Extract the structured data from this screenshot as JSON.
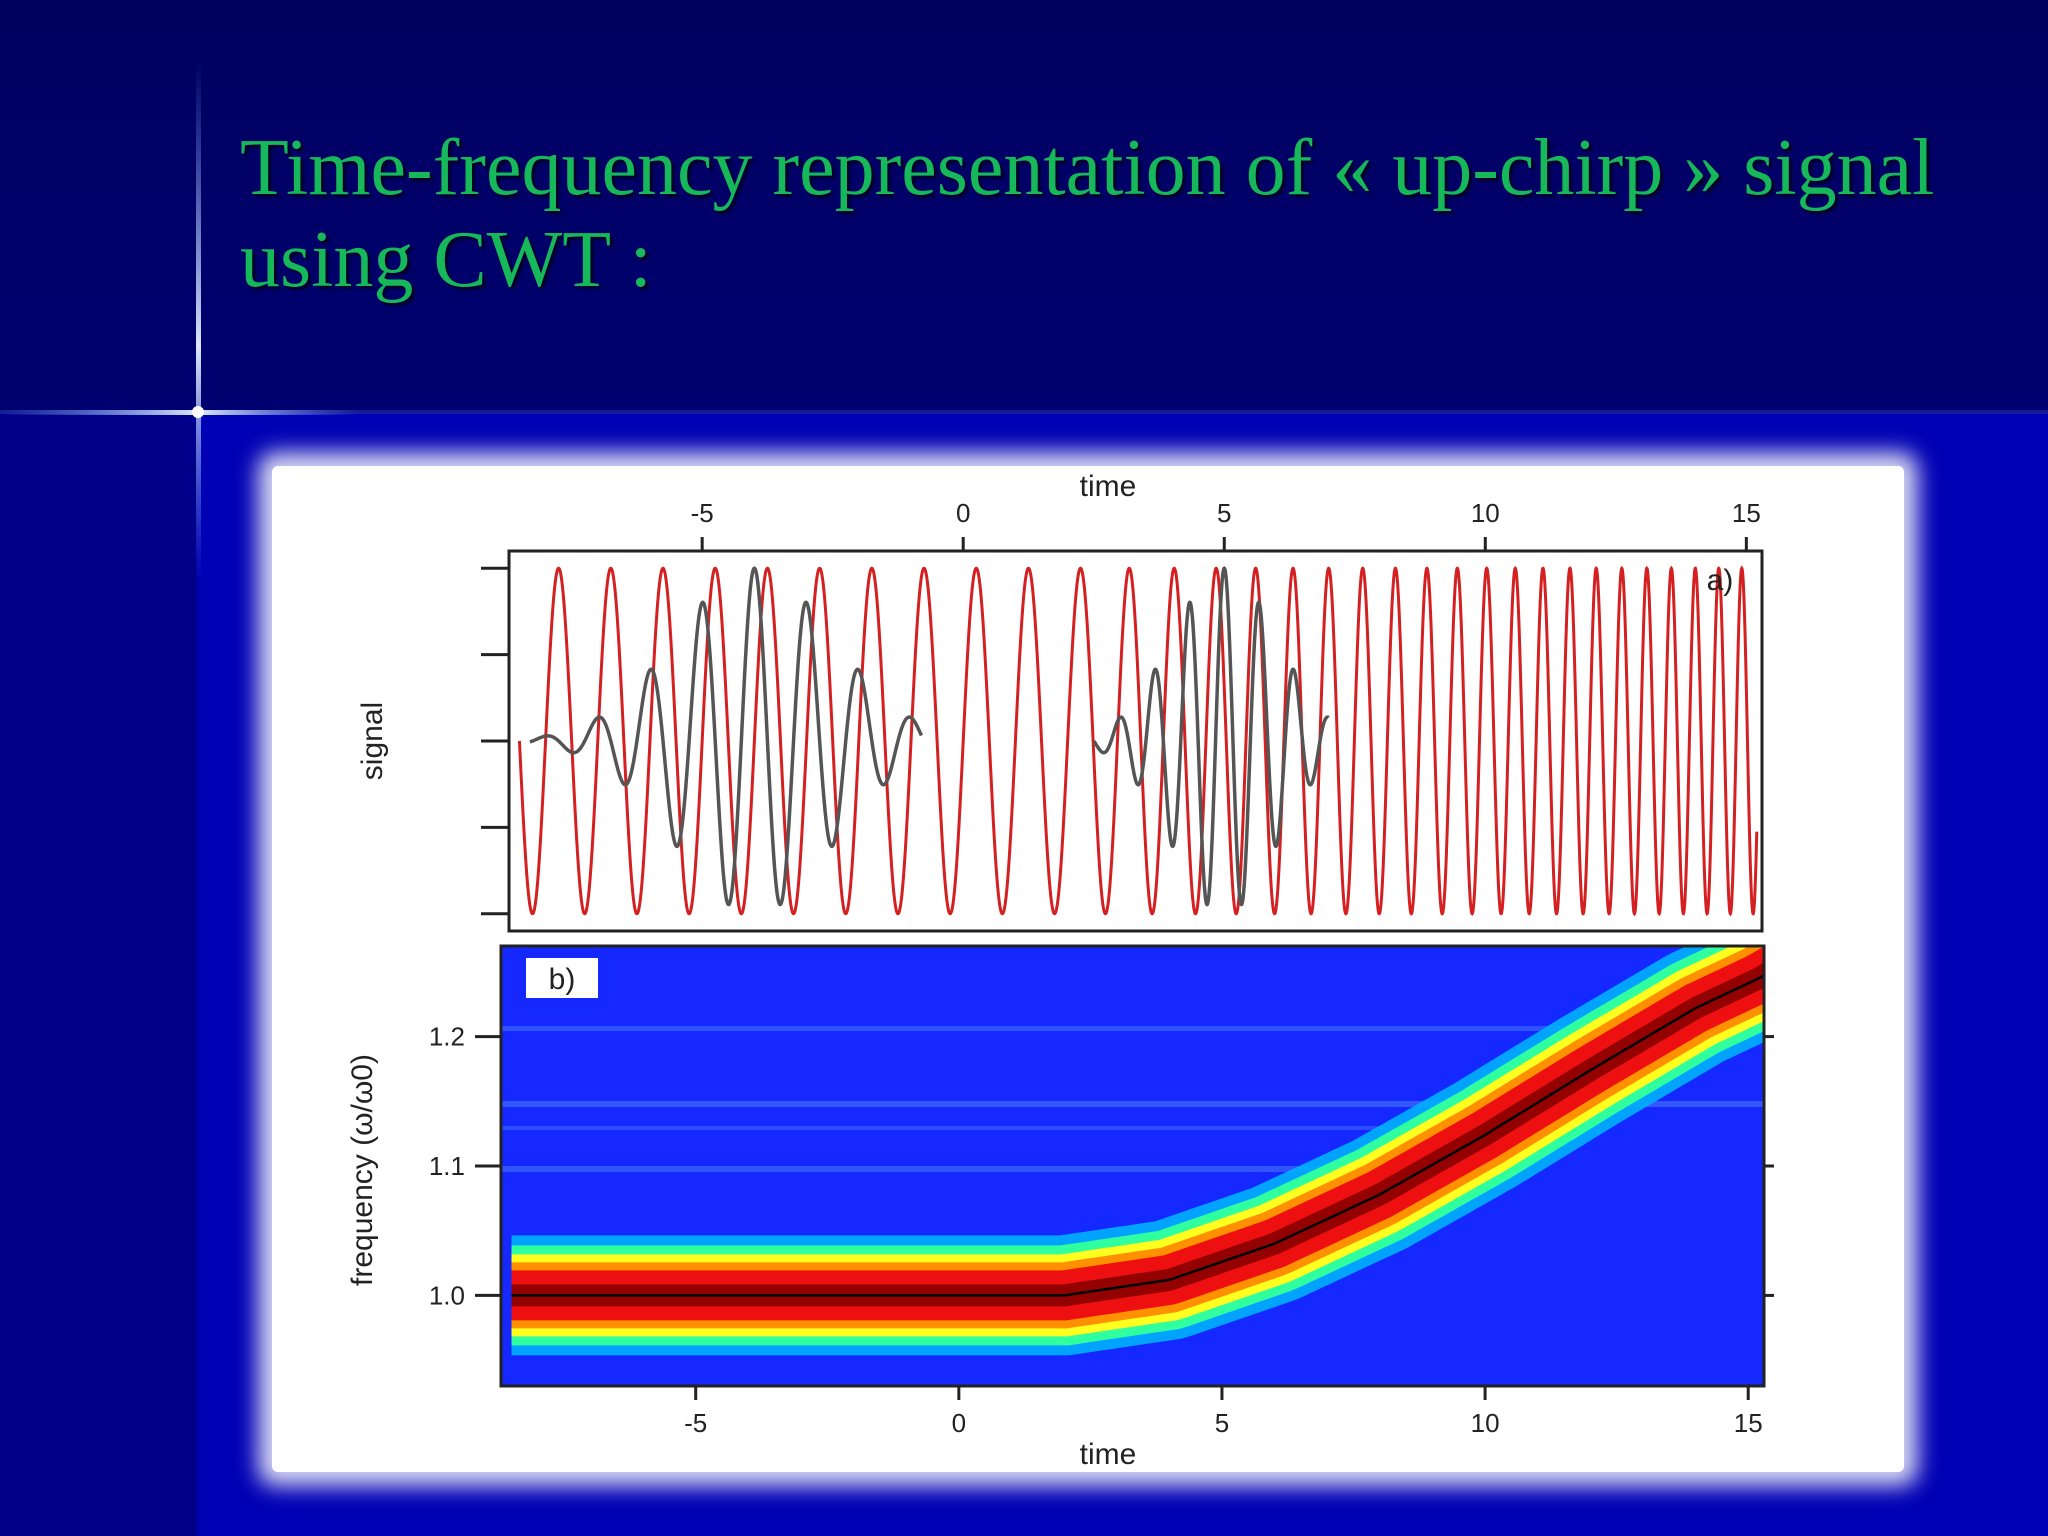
{
  "slide": {
    "title_line1": "Time-frequency representation of « up-chirp » signal",
    "title_line2": "using CWT :"
  },
  "colors": {
    "background": "#0000b4",
    "title": "#16b85a",
    "signal": "#d42020",
    "wavelet": "#555555",
    "heatmap_low": "#1428ff",
    "ridge": "#000000"
  },
  "chart_data": [
    {
      "type": "line",
      "panel_label": "a)",
      "xlabel": "time",
      "ylabel": "signal",
      "xlim": [
        -8.7,
        15.3
      ],
      "ylim": [
        -1.1,
        1.1
      ],
      "x_ticks": [
        "-5",
        "0",
        "5",
        "10",
        "15"
      ],
      "x_tick_values": [
        -5,
        0,
        5,
        10,
        15
      ],
      "x_axis_position": "top",
      "series": [
        {
          "role": "up-chirp signal",
          "color": "#d42020",
          "t0": 2,
          "alpha": 0.05,
          "amplitude": 1.0,
          "x_range": [
            -8.5,
            15.2
          ]
        },
        {
          "role": "wavelet at t = -4",
          "color": "#555555",
          "center": -4,
          "frequency": 1.0,
          "amplitude": 1.0,
          "x_range": [
            -8.3,
            -0.8
          ]
        },
        {
          "role": "wavelet at t = 5",
          "color": "#555555",
          "center": 5,
          "frequency": 1.5,
          "amplitude": 1.0,
          "x_range": [
            2.5,
            7.0
          ]
        }
      ]
    },
    {
      "type": "heatmap",
      "panel_label": "b)",
      "xlabel": "time",
      "ylabel": "frequency (ω/ω0)",
      "xlim": [
        -8.7,
        15.3
      ],
      "ylim": [
        0.93,
        1.27
      ],
      "x_ticks": [
        "-5",
        "0",
        "5",
        "10",
        "15"
      ],
      "x_tick_values": [
        -5,
        0,
        5,
        10,
        15
      ],
      "y_ticks": [
        "1.0",
        "1.1",
        "1.2"
      ],
      "y_tick_values": [
        1.0,
        1.1,
        1.2
      ],
      "ridge": {
        "description": "instantaneous frequency",
        "t0": 2,
        "points": [
          [
            -8.5,
            1.0
          ],
          [
            2,
            1.0
          ],
          [
            4,
            1.012
          ],
          [
            6,
            1.04
          ],
          [
            8,
            1.078
          ],
          [
            10,
            1.124
          ],
          [
            12,
            1.174
          ],
          [
            14,
            1.222
          ],
          [
            15.2,
            1.245
          ]
        ]
      }
    }
  ]
}
